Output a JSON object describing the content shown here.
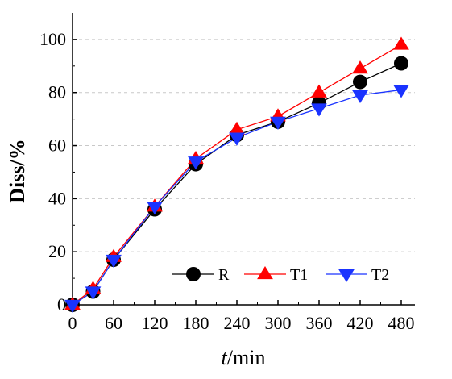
{
  "chart_data": {
    "type": "line",
    "title": "",
    "xlabel_italic": "t",
    "xlabel_rest": "/min",
    "ylabel": "Diss/%",
    "x": [
      0,
      30,
      60,
      120,
      180,
      240,
      300,
      360,
      420,
      480
    ],
    "xticks": [
      0,
      60,
      120,
      180,
      240,
      300,
      360,
      420,
      480
    ],
    "yticks": [
      0,
      20,
      40,
      60,
      80,
      100
    ],
    "xlim": [
      0,
      500
    ],
    "ylim": [
      0,
      110
    ],
    "grid": "horizontal-dashed",
    "legend_position": "bottom-right",
    "series": [
      {
        "name": "R",
        "color": "#000000",
        "marker": "circle",
        "values": [
          0,
          5,
          17,
          36,
          53,
          64,
          69,
          76,
          84,
          91
        ]
      },
      {
        "name": "T1",
        "color": "#ff0000",
        "marker": "triangle-up",
        "values": [
          0,
          6,
          18,
          37,
          55,
          66,
          71,
          80,
          89,
          98
        ]
      },
      {
        "name": "T2",
        "color": "#1a33ff",
        "marker": "triangle-down",
        "values": [
          0,
          5,
          17,
          37,
          54,
          63,
          69,
          74,
          79,
          81
        ]
      }
    ]
  }
}
